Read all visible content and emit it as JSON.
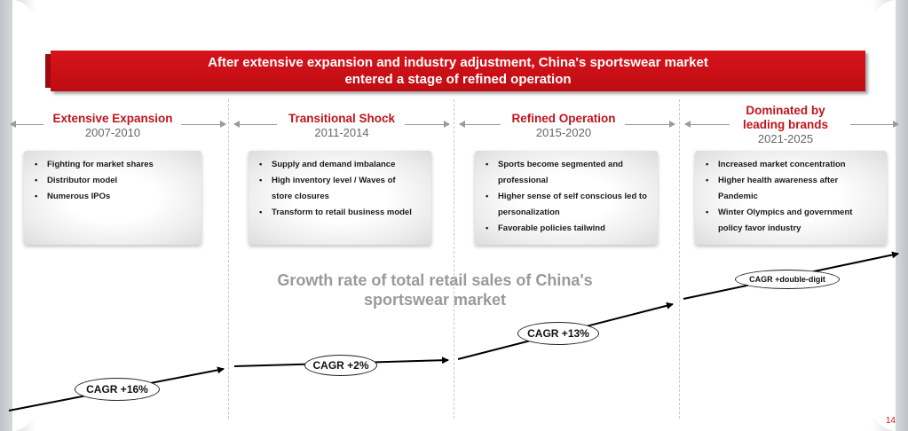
{
  "banner": {
    "line1": "After extensive expansion and industry adjustment, China's sportswear market",
    "line2": "entered a stage of refined operation"
  },
  "phases": [
    {
      "title": "Extensive Expansion",
      "years": "2007-2010",
      "bullets": [
        "Fighting for market shares",
        "Distributor model",
        "Numerous IPOs"
      ],
      "cagr": "CAGR +16%"
    },
    {
      "title": "Transitional Shock",
      "years": "2011-2014",
      "bullets": [
        "Supply and demand imbalance",
        "High inventory level / Waves of store closures",
        "Transform to retail business model"
      ],
      "cagr": "CAGR  +2%"
    },
    {
      "title": "Refined Operation",
      "years": "2015-2020",
      "bullets": [
        "Sports become segmented and professional",
        "Higher sense of self conscious led to personalization",
        "Favorable policies tailwind"
      ],
      "cagr": "CAGR +13%"
    },
    {
      "title_line1": "Dominated by",
      "title_line2": "leading brands",
      "years": "2021-2025",
      "bullets": [
        "Increased market concentration",
        "Higher health awareness after Pandemic",
        "Winter Olympics and government policy favor industry"
      ],
      "cagr": "CAGR +double-digit"
    }
  ],
  "growth_title": {
    "line1": "Growth rate of total retail sales of China's",
    "line2": "sportswear market"
  },
  "page_number": "14",
  "colors": {
    "brand_red": "#c0141c",
    "muted_gray": "#9a9a9a"
  }
}
